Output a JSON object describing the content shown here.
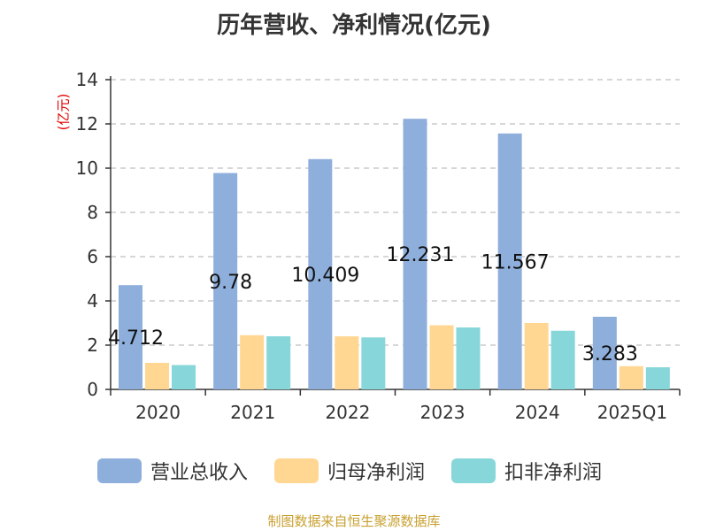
{
  "title": "历年营收、净利情况(亿元)",
  "unit_label": "(亿元)",
  "source": "制图数据来自恒生聚源数据库",
  "colors": {
    "revenue": "#8eaedb",
    "net_profit": "#ffd793",
    "deducted_net_profit": "#87d6d9",
    "axis": "#333333",
    "grid": "#bfbfbf",
    "unit_label": "#e00000",
    "source": "#c8a030"
  },
  "chart_data": {
    "type": "bar",
    "title": "历年营收、净利情况(亿元)",
    "ylabel": "(亿元)",
    "xlabel": "",
    "ylim": [
      0,
      14
    ],
    "yticks": [
      0,
      2,
      4,
      6,
      8,
      10,
      12,
      14
    ],
    "grid": true,
    "legend_position": "bottom",
    "categories": [
      "2020",
      "2021",
      "2022",
      "2023",
      "2024",
      "2025Q1"
    ],
    "series": [
      {
        "name": "营业总收入",
        "color": "#8eaedb",
        "values": [
          4.712,
          9.78,
          10.409,
          12.231,
          11.567,
          3.283
        ],
        "labels": [
          "4.712",
          "9.78",
          "10.409",
          "12.231",
          "11.567",
          "3.283"
        ]
      },
      {
        "name": "归母净利润",
        "color": "#ffd793",
        "values": [
          1.2,
          2.45,
          2.4,
          2.9,
          3.0,
          1.05
        ]
      },
      {
        "name": "扣非净利润",
        "color": "#87d6d9",
        "values": [
          1.1,
          2.4,
          2.35,
          2.8,
          2.65,
          1.0
        ]
      }
    ]
  }
}
